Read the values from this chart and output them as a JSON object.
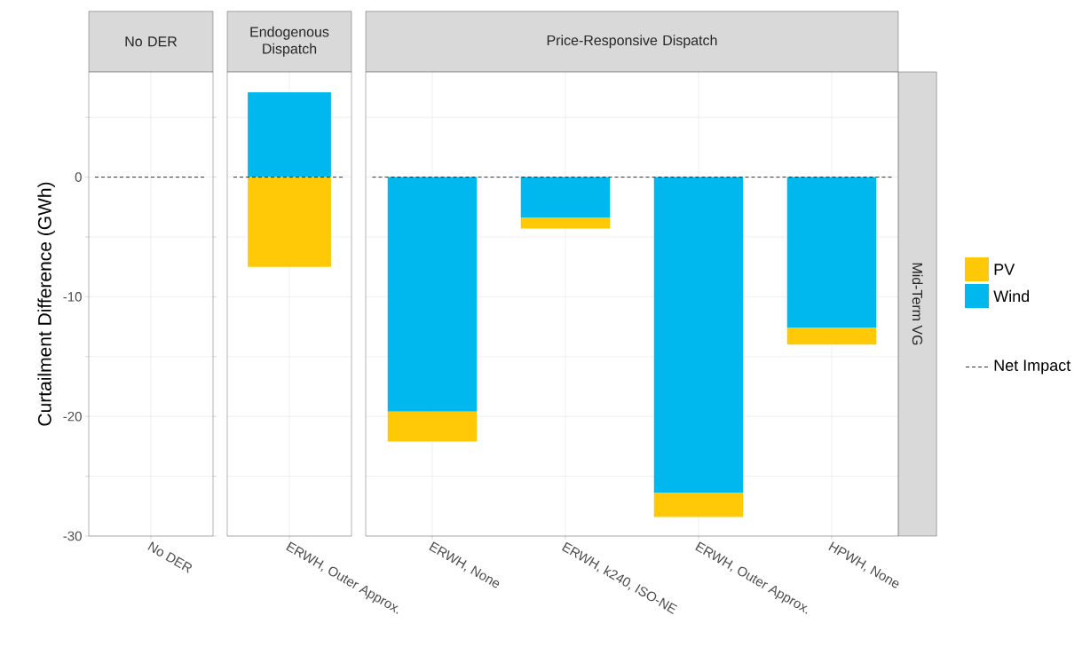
{
  "chart_data": [
    {
      "type": "bar",
      "title": "No DER",
      "ylabel": "Curtailment Difference (GWh)",
      "categories": [
        "No DER"
      ],
      "stacked": true,
      "series": [
        {
          "color": "#00b7ee",
          "values": [
            0
          ]
        },
        {
          "color": "#ffc907",
          "values": [
            0
          ]
        }
      ],
      "ylim": [
        -30,
        8.8
      ],
      "yticks": [
        -30,
        {
          "value": -25,
          "label": null
        },
        -20,
        {
          "value": -15,
          "label": null
        },
        -10,
        {
          "value": -5,
          "label": null
        },
        0,
        {
          "value": 5,
          "label": null
        }
      ],
      "grid": true,
      "ref_lines": [
        {
          "axis": "y",
          "value": 0,
          "line_style": "dashed",
          "color": "#000000"
        }
      ]
    },
    {
      "type": "bar",
      "title": "Endogenous Dispatch",
      "categories": [
        "ERWH, Outer Approx."
      ],
      "stacked": true,
      "series": [
        {
          "color": "#00b7ee",
          "values": [
            7.1
          ]
        },
        {
          "color": "#ffc907",
          "values": [
            -7.5
          ]
        }
      ],
      "ylim": [
        -30,
        8.8
      ],
      "yticks": [
        -30,
        {
          "value": -25,
          "label": null
        },
        -20,
        {
          "value": -15,
          "label": null
        },
        -10,
        {
          "value": -5,
          "label": null
        },
        0,
        {
          "value": 5,
          "label": null
        }
      ],
      "grid": true,
      "tick_labels": "x",
      "ref_lines": [
        {
          "axis": "y",
          "value": 0,
          "line_style": "dashed",
          "color": "#000000"
        }
      ]
    },
    {
      "type": "bar",
      "title": "Price-Responsive Dispatch",
      "categories": [
        "ERWH, None",
        "ERWH, k240, ISO-NE",
        "ERWH, Outer Approx.",
        "HPWH, None"
      ],
      "stacked": true,
      "series": [
        {
          "name": "Wind",
          "color": "#00b7ee",
          "values": [
            -19.6,
            -3.4,
            -26.4,
            -12.6
          ]
        },
        {
          "name": "PV",
          "color": "#ffc907",
          "values": [
            -2.5,
            -0.9,
            -2.0,
            -1.4
          ]
        }
      ],
      "ylim": [
        -30,
        8.8
      ],
      "yticks": [
        -30,
        {
          "value": -25,
          "label": null
        },
        -20,
        {
          "value": -15,
          "label": null
        },
        -10,
        {
          "value": -5,
          "label": null
        },
        0,
        {
          "value": 5,
          "label": null
        }
      ],
      "grid": true,
      "tick_labels": "x",
      "legend": "right",
      "ref_lines": [
        {
          "axis": "y",
          "value": 0,
          "line_style": "dashed",
          "color": "#000000",
          "label": "Net Impact"
        }
      ],
      "annotations": [
        "Mid-Term VG"
      ]
    }
  ]
}
